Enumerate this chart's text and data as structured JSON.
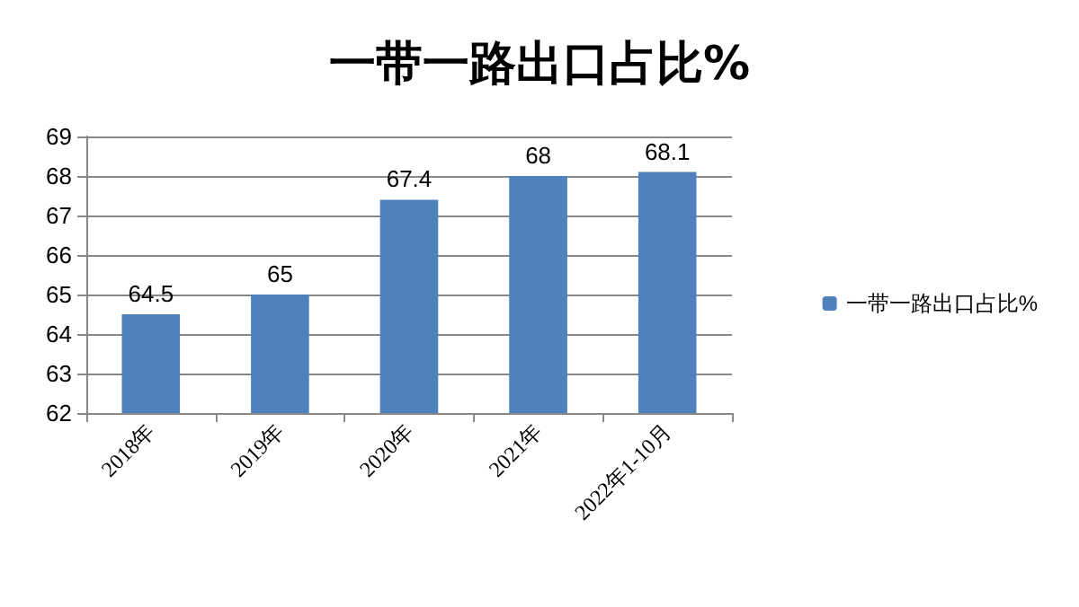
{
  "chart_data": {
    "type": "bar",
    "title": "一带一路出口占比%",
    "categories": [
      "2018年",
      "2019年",
      "2020年",
      "2021年",
      "2022年1-10月"
    ],
    "series": [
      {
        "name": "一带一路出口占比%",
        "color": "#4f81bd",
        "values": [
          64.5,
          65,
          67.4,
          68,
          68.1
        ]
      }
    ],
    "ylim": [
      62,
      69
    ],
    "yticks": [
      62,
      63,
      64,
      65,
      66,
      67,
      68,
      69
    ],
    "grid": "y",
    "legend": "right",
    "data_labels": true
  }
}
